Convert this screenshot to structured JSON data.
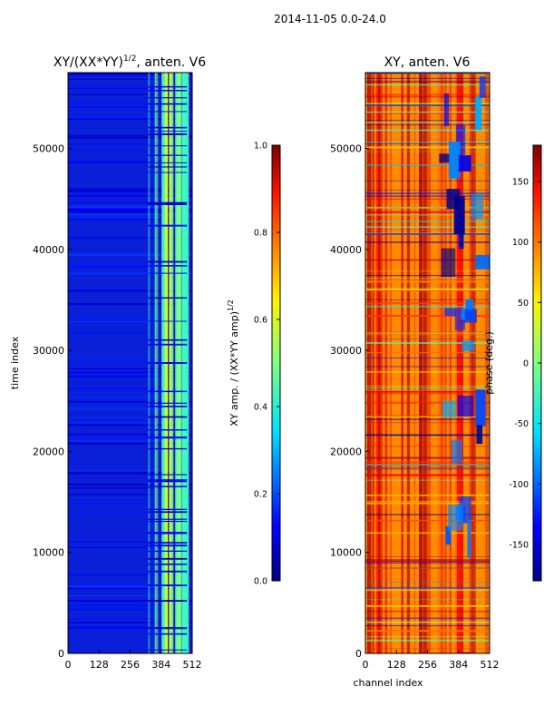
{
  "figure": {
    "suptitle": "2014-11-05 0.0-24.0"
  },
  "chart_data": [
    {
      "type": "heatmap",
      "title_main": "XY/(XX*YY)",
      "title_sup": "1/2",
      "title_tail": ", anten. V6",
      "xlabel": "",
      "ylabel": "time index",
      "xlim": [
        0,
        512
      ],
      "ylim": [
        0,
        57500
      ],
      "xticks": [
        0,
        128,
        256,
        384,
        512
      ],
      "yticks": [
        0,
        10000,
        20000,
        30000,
        40000,
        50000
      ],
      "colormap": "jet",
      "colorbar": {
        "label_main": "XY amp. / (XX*YY amp)",
        "label_sup": "1/2",
        "range": [
          0.0,
          1.0
        ],
        "ticks": [
          "0.0",
          "0.2",
          "0.4",
          "0.6",
          "0.8",
          "1.0"
        ]
      },
      "description_values": {
        "background_amp": 0.1,
        "high_channels_range": [
          330,
          490
        ],
        "high_channels_amp": 0.35
      }
    },
    {
      "type": "heatmap",
      "title": "XY, anten. V6",
      "xlabel": "channel index",
      "ylabel": "",
      "xlim": [
        0,
        512
      ],
      "ylim": [
        0,
        57500
      ],
      "xticks": [
        0,
        128,
        256,
        384,
        512
      ],
      "yticks": [
        0,
        10000,
        20000,
        30000,
        40000,
        50000
      ],
      "colormap": "jet",
      "colorbar": {
        "label": "phase (deg.)",
        "range": [
          -180,
          180
        ],
        "ticks": [
          "-150",
          "-100",
          "-50",
          "0",
          "50",
          "100",
          "150"
        ]
      },
      "description_values": {
        "background_phase": 120,
        "low_phase_region_channels": [
          300,
          470
        ]
      }
    }
  ],
  "colors": {
    "jet_low": "#00007f",
    "jet_mid": "#7fff7f",
    "jet_high": "#7f0000"
  }
}
